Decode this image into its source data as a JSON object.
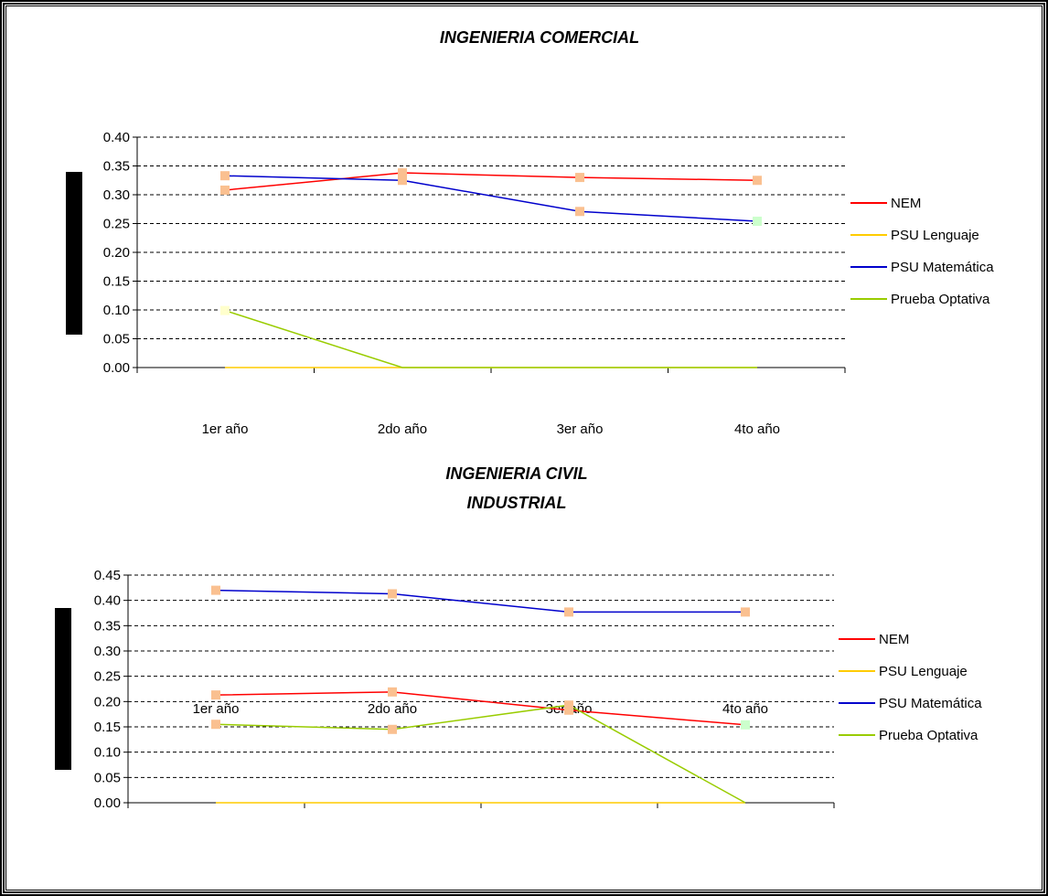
{
  "chart_data": [
    {
      "type": "line",
      "title": "INGENIERIA COMERCIAL",
      "categories": [
        "1er año",
        "2do año",
        "3er año",
        "4to año"
      ],
      "ylim": [
        0,
        0.4
      ],
      "yticks": [
        "0.00",
        "0.05",
        "0.10",
        "0.15",
        "0.20",
        "0.25",
        "0.30",
        "0.35",
        "0.40"
      ],
      "grid": true,
      "legend_position": "right",
      "series": [
        {
          "name": "NEM",
          "color": "#ff0000",
          "values": [
            0.308,
            0.338,
            0.33,
            0.325
          ]
        },
        {
          "name": "PSU Lenguaje",
          "color": "#ffcc00",
          "values": [
            0,
            0,
            0,
            0
          ]
        },
        {
          "name": "PSU Matemática",
          "color": "#0000cc",
          "values": [
            0.333,
            0.325,
            0.271,
            0.254
          ]
        },
        {
          "name": "Prueba Optativa",
          "color": "#99cc00",
          "values": [
            0.099,
            0,
            0,
            0
          ]
        }
      ]
    },
    {
      "type": "line",
      "title_lines": [
        "INGENIERIA CIVIL",
        "INDUSTRIAL"
      ],
      "categories": [
        "1er año",
        "2do año",
        "3er año",
        "4to año"
      ],
      "ylim": [
        0,
        0.45
      ],
      "yticks": [
        "0.00",
        "0.05",
        "0.10",
        "0.15",
        "0.20",
        "0.25",
        "0.30",
        "0.35",
        "0.40",
        "0.45"
      ],
      "grid": true,
      "legend_position": "right",
      "series": [
        {
          "name": "NEM",
          "color": "#ff0000",
          "values": [
            0.213,
            0.219,
            0.183,
            0.154
          ]
        },
        {
          "name": "PSU Lenguaje",
          "color": "#ffcc00",
          "values": [
            0,
            0,
            0,
            0
          ]
        },
        {
          "name": "PSU Matemática",
          "color": "#0000cc",
          "values": [
            0.42,
            0.413,
            0.377,
            0.377
          ]
        },
        {
          "name": "Prueba Optativa",
          "color": "#99cc00",
          "values": [
            0.155,
            0.145,
            0.193,
            0
          ]
        }
      ]
    }
  ]
}
